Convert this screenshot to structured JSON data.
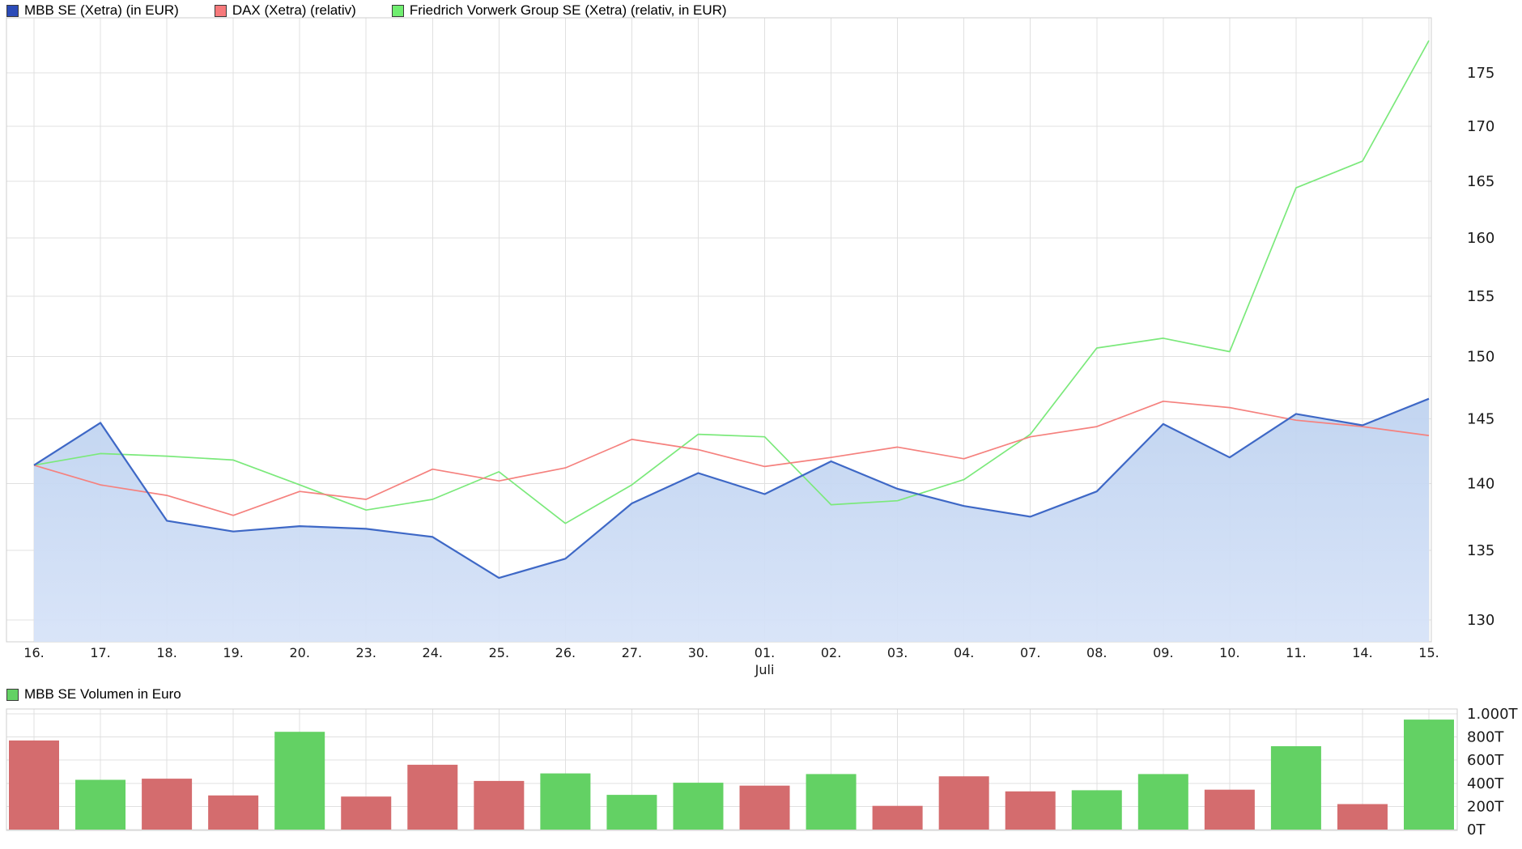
{
  "page": {
    "background": "#ffffff"
  },
  "legend": {
    "price": [
      {
        "label": "MBB SE (Xetra) (in EUR)",
        "color": "#2B4BB8"
      },
      {
        "label": "DAX (Xetra) (relativ)",
        "color": "#F7797B"
      },
      {
        "label": "Friedrich Vorwerk Group SE (Xetra) (relativ, in EUR)",
        "color": "#70EE70"
      }
    ],
    "volume": [
      {
        "label": "MBB SE Volumen in Euro",
        "color": "#63D164"
      }
    ]
  },
  "chart_data": [
    {
      "type": "line",
      "title": "",
      "legend_position": "top-left",
      "grid": true,
      "x": {
        "categories": [
          "16.",
          "17.",
          "18.",
          "19.",
          "20.",
          "23.",
          "24.",
          "25.",
          "26.",
          "27.",
          "30.",
          "01.",
          "02.",
          "03.",
          "04.",
          "07.",
          "08.",
          "09.",
          "10.",
          "11.",
          "14.",
          "15."
        ],
        "month_label": "Juli",
        "month_label_under": "01."
      },
      "y": {
        "side": "right",
        "scale": "log",
        "ticks": [
          175,
          170,
          165,
          160,
          155,
          150,
          145,
          140,
          135,
          130
        ],
        "top_value": 180.4,
        "bottom_value": 128.6
      },
      "series": [
        {
          "name": "MBB SE (Xetra) (in EUR)",
          "color": "#3E68C6",
          "area_fill": true,
          "area_color_top": "#BFD3F0",
          "area_color_bottom": "#D7E3F8",
          "values": [
            141.4,
            144.7,
            137.2,
            136.4,
            136.8,
            136.6,
            136.0,
            133.0,
            134.4,
            138.5,
            140.8,
            139.2,
            141.7,
            139.6,
            138.3,
            137.5,
            139.4,
            144.6,
            142.0,
            145.4,
            144.5,
            146.6
          ]
        },
        {
          "name": "DAX (Xetra) (relativ)",
          "color": "#F5817E",
          "area_fill": false,
          "values": [
            141.4,
            139.9,
            139.1,
            137.6,
            139.4,
            138.8,
            141.1,
            140.2,
            141.2,
            143.4,
            142.6,
            141.3,
            142.0,
            142.8,
            141.9,
            143.6,
            144.4,
            146.4,
            145.9,
            144.9,
            144.4,
            143.7
          ]
        },
        {
          "name": "Friedrich Vorwerk Group SE (Xetra) (relativ, in EUR)",
          "color": "#7BE97B",
          "area_fill": false,
          "values": [
            141.4,
            142.3,
            142.1,
            141.8,
            139.9,
            138.0,
            138.8,
            140.9,
            137.0,
            139.9,
            143.8,
            143.6,
            138.4,
            138.7,
            140.3,
            143.8,
            150.7,
            151.5,
            150.4,
            164.4,
            166.8,
            178.1
          ]
        }
      ]
    },
    {
      "type": "bar",
      "name": "MBB SE Volumen in Euro",
      "unit": "T",
      "categories": [
        "16.",
        "17.",
        "18.",
        "19.",
        "20.",
        "23.",
        "24.",
        "25.",
        "26.",
        "27.",
        "30.",
        "01.",
        "02.",
        "03.",
        "04.",
        "07.",
        "08.",
        "09.",
        "10.",
        "11.",
        "14.",
        "15."
      ],
      "values": [
        770,
        430,
        440,
        295,
        845,
        285,
        560,
        420,
        485,
        300,
        405,
        380,
        480,
        205,
        460,
        330,
        340,
        480,
        345,
        720,
        220,
        950
      ],
      "bar_directions": [
        "down",
        "up",
        "down",
        "down",
        "up",
        "down",
        "down",
        "down",
        "up",
        "up",
        "up",
        "down",
        "up",
        "down",
        "down",
        "down",
        "up",
        "up",
        "down",
        "up",
        "down",
        "up"
      ],
      "palette": {
        "up": "#63D164",
        "down": "#D46C6E"
      },
      "y": {
        "side": "right",
        "ticks_labels": [
          "1.000T",
          "800T",
          "600T",
          "400T",
          "200T",
          "0T"
        ],
        "tick_values": [
          1000,
          800,
          600,
          400,
          200,
          0
        ],
        "max": 1042
      }
    }
  ]
}
